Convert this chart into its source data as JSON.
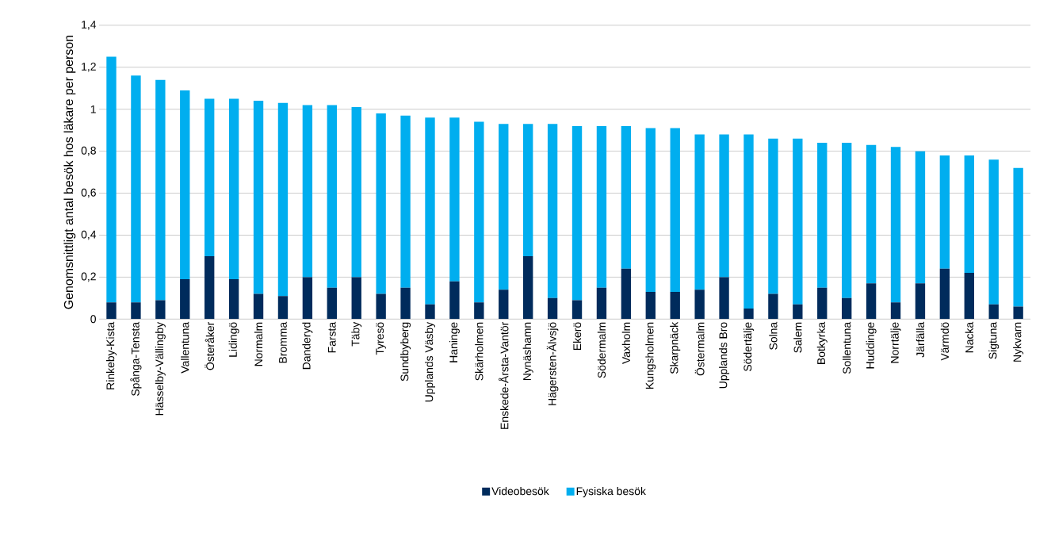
{
  "chart_data": {
    "type": "bar",
    "stacked": true,
    "ylabel": "Genomsnittligt antal besök hos läkare per person",
    "categories": [
      "Rinkeby-Kista",
      "Spånga-Tensta",
      "Hässelby-Vällingby",
      "Vallentuna",
      "Österåker",
      "Lidingö",
      "Normalm",
      "Bromma",
      "Danderyd",
      "Farsta",
      "Täby",
      "Tyresö",
      "Sundbyberg",
      "Upplands Väsby",
      "Haninge",
      "Skärholmen",
      "Enskede-Årsta-Vantör",
      "Nynäshamn",
      "Hägersten-Älvsjö",
      "Ekerö",
      "Södermalm",
      "Vaxholm",
      "Kungsholmen",
      "Skarpnäck",
      "Östermalm",
      "Upplands Bro",
      "Södertälje",
      "Solna",
      "Salem",
      "Botkyrka",
      "Sollentuna",
      "Huddinge",
      "Norrtälje",
      "Järfälla",
      "Värmdö",
      "Nacka",
      "Sigtuna",
      "Nykvarn"
    ],
    "series": [
      {
        "name": "Videobesök",
        "color": "#002b5c",
        "values": [
          0.08,
          0.08,
          0.09,
          0.19,
          0.3,
          0.19,
          0.12,
          0.11,
          0.2,
          0.15,
          0.2,
          0.12,
          0.15,
          0.07,
          0.18,
          0.08,
          0.14,
          0.3,
          0.1,
          0.09,
          0.15,
          0.24,
          0.13,
          0.13,
          0.14,
          0.2,
          0.05,
          0.12,
          0.07,
          0.15,
          0.1,
          0.17,
          0.08,
          0.17,
          0.24,
          0.22,
          0.07,
          0.06
        ]
      },
      {
        "name": "Fysiska besök",
        "color": "#00aeef",
        "values": [
          1.17,
          1.08,
          1.05,
          0.9,
          0.75,
          0.86,
          0.92,
          0.92,
          0.82,
          0.87,
          0.81,
          0.86,
          0.82,
          0.89,
          0.78,
          0.86,
          0.79,
          0.63,
          0.83,
          0.83,
          0.77,
          0.68,
          0.78,
          0.78,
          0.74,
          0.68,
          0.83,
          0.74,
          0.79,
          0.69,
          0.74,
          0.66,
          0.74,
          0.63,
          0.54,
          0.56,
          0.69,
          0.66
        ]
      }
    ],
    "ylim": [
      0,
      1.4
    ],
    "yticks": [
      {
        "value": 0,
        "label": "0"
      },
      {
        "value": 0.2,
        "label": "0,2"
      },
      {
        "value": 0.4,
        "label": "0,4"
      },
      {
        "value": 0.6,
        "label": "0,6"
      },
      {
        "value": 0.8,
        "label": "0,8"
      },
      {
        "value": 1,
        "label": "1"
      },
      {
        "value": 1.2,
        "label": "1,2"
      },
      {
        "value": 1.4,
        "label": "1,4"
      }
    ],
    "grid": "y",
    "legend": "bottom"
  }
}
